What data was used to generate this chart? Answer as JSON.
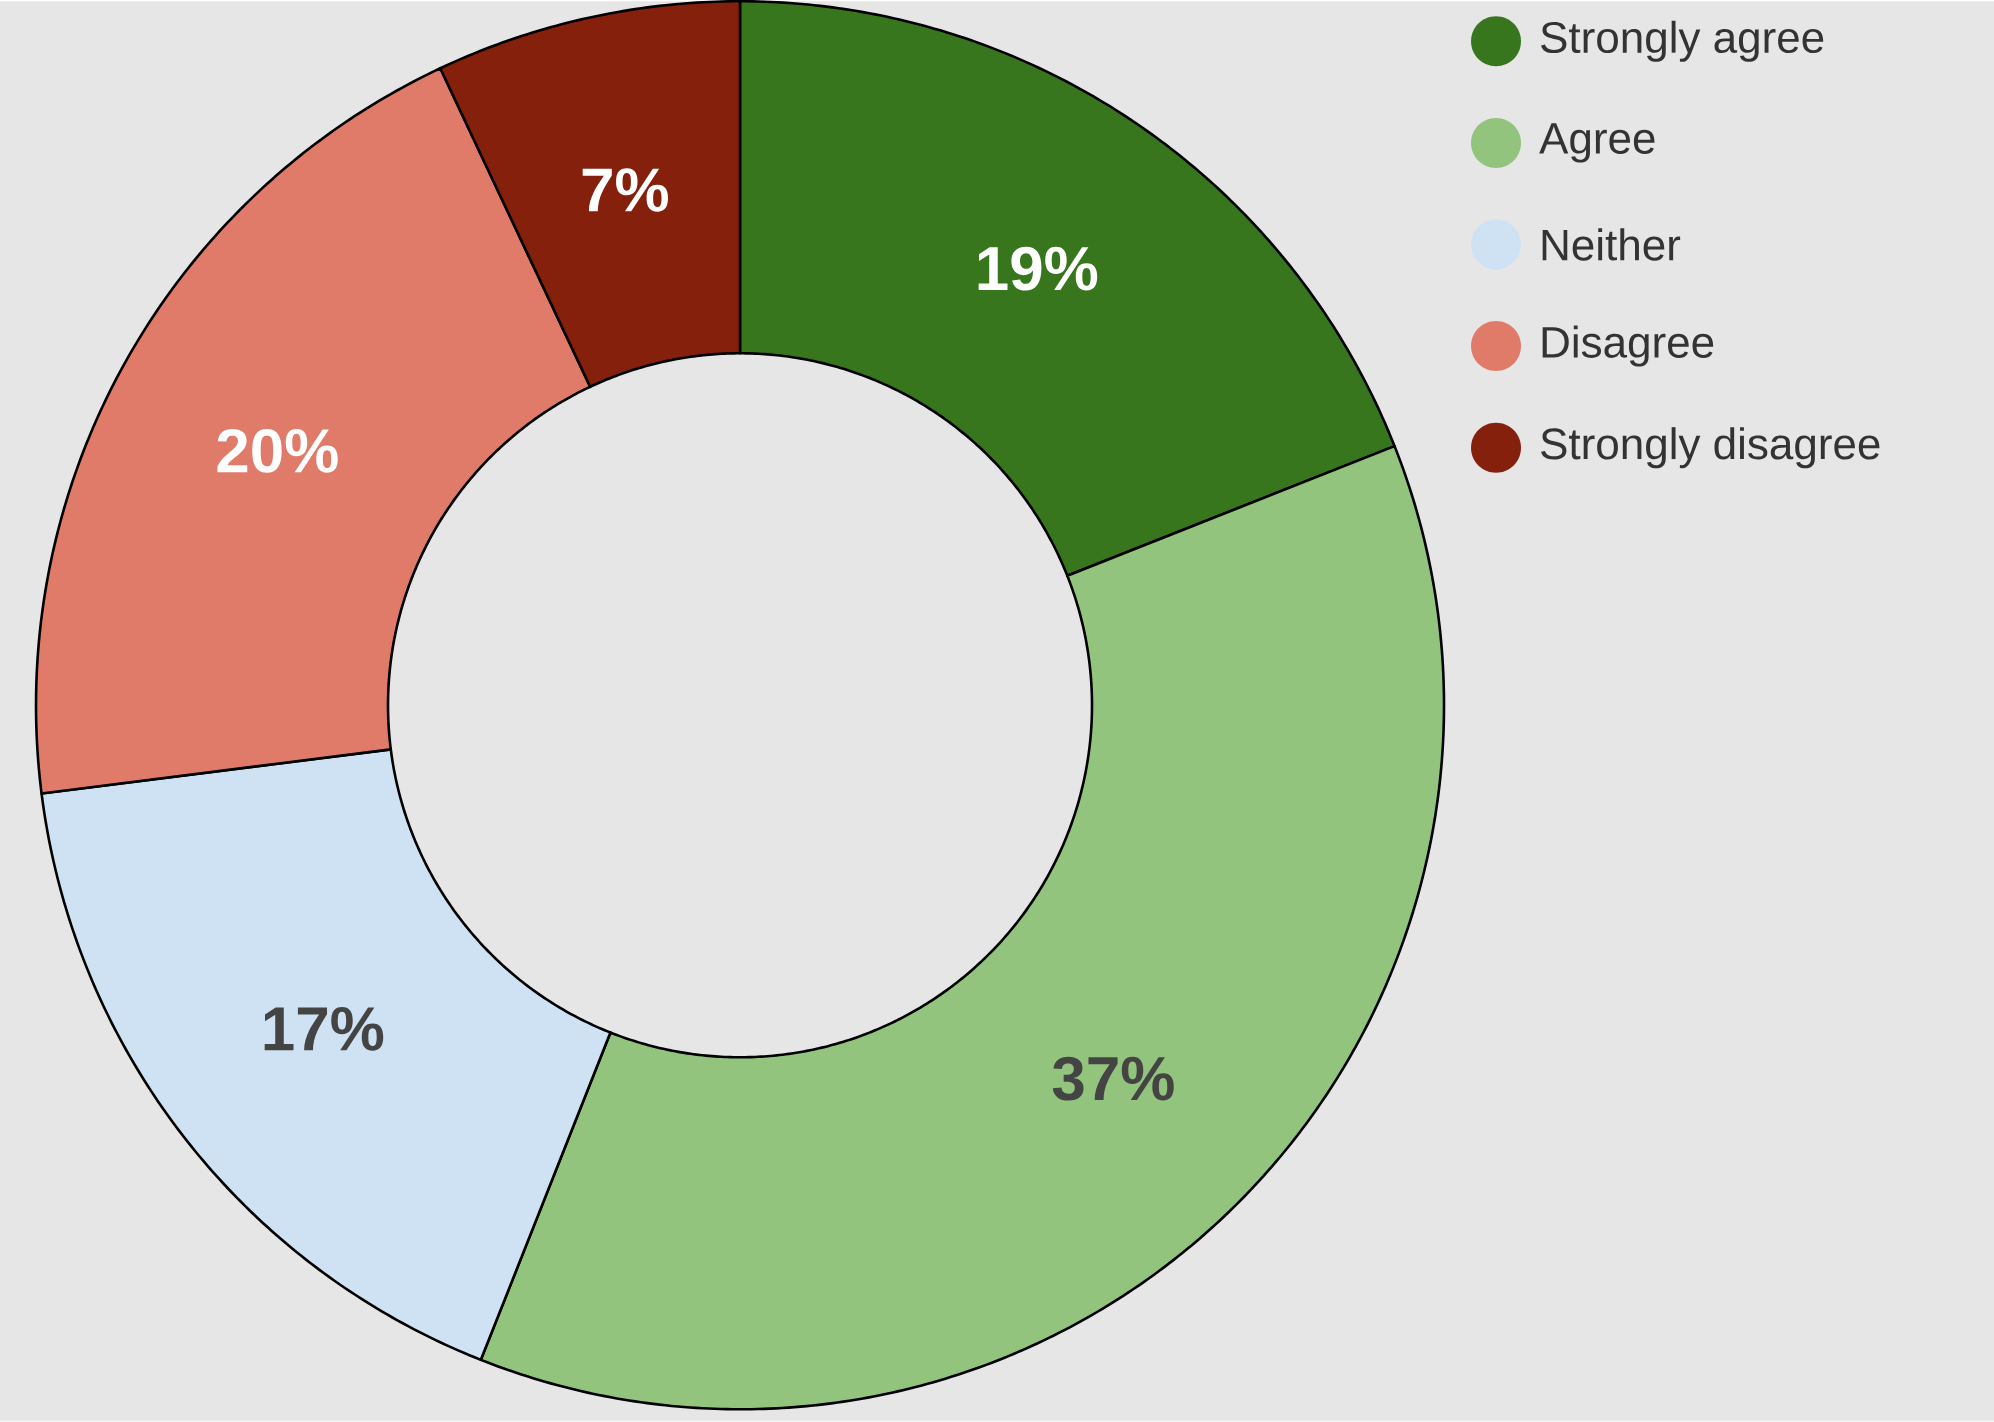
{
  "chart_data": {
    "type": "donut",
    "categories": [
      "Strongly agree",
      "Agree",
      "Neither",
      "Disagree",
      "Strongly disagree"
    ],
    "values": [
      19,
      37,
      17,
      20,
      7
    ],
    "colors": [
      "#38761d",
      "#93c47d",
      "#cfe2f3",
      "#e07b6a",
      "#85200c"
    ],
    "value_labels": [
      "19%",
      "37%",
      "17%",
      "20%",
      "7%"
    ],
    "legend": "top right"
  }
}
